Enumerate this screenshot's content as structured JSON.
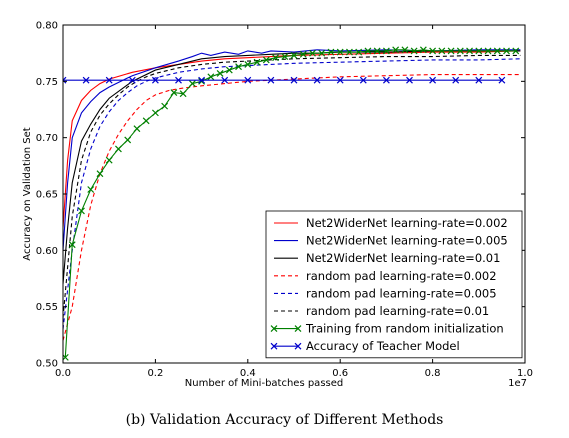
{
  "caption": "(b) Validation Accuracy of Different Methods",
  "chart_data": {
    "type": "line",
    "xlabel": "Number of Mini-batches passed",
    "ylabel": "Accuracy on Validation Set",
    "x_offset_label": "1e7",
    "xlim": [
      0.0,
      1.0
    ],
    "ylim": [
      0.5,
      0.8
    ],
    "x_ticks": [
      "0.0",
      "0.2",
      "0.4",
      "0.6",
      "0.8",
      "1.0"
    ],
    "y_ticks": [
      "0.50",
      "0.55",
      "0.60",
      "0.65",
      "0.70",
      "0.75",
      "0.80"
    ],
    "grid": false,
    "legend_position": "lower-right",
    "series": [
      {
        "name": "Net2WiderNet learning-rate=0.002",
        "color": "#ff0000",
        "style": "solid",
        "marker": "none",
        "x": [
          0.0,
          0.01,
          0.02,
          0.04,
          0.06,
          0.08,
          0.1,
          0.15,
          0.2,
          0.25,
          0.3,
          0.35,
          0.4,
          0.45,
          0.5,
          0.6,
          0.7,
          0.8,
          0.9,
          0.99
        ],
        "y": [
          0.62,
          0.68,
          0.715,
          0.733,
          0.742,
          0.748,
          0.752,
          0.758,
          0.762,
          0.765,
          0.768,
          0.77,
          0.771,
          0.772,
          0.773,
          0.774,
          0.775,
          0.776,
          0.776,
          0.777
        ]
      },
      {
        "name": "Net2WiderNet learning-rate=0.005",
        "color": "#0000cc",
        "style": "solid",
        "marker": "none",
        "x": [
          0.0,
          0.01,
          0.02,
          0.04,
          0.06,
          0.08,
          0.1,
          0.15,
          0.2,
          0.25,
          0.28,
          0.3,
          0.32,
          0.35,
          0.38,
          0.4,
          0.43,
          0.45,
          0.5,
          0.55,
          0.6,
          0.7,
          0.8,
          0.9,
          0.99
        ],
        "y": [
          0.6,
          0.66,
          0.7,
          0.722,
          0.732,
          0.74,
          0.745,
          0.755,
          0.762,
          0.768,
          0.772,
          0.775,
          0.773,
          0.776,
          0.774,
          0.777,
          0.775,
          0.777,
          0.776,
          0.778,
          0.777,
          0.778,
          0.777,
          0.778,
          0.778
        ]
      },
      {
        "name": "Net2WiderNet learning-rate=0.01",
        "color": "#000000",
        "style": "solid",
        "marker": "none",
        "x": [
          0.0,
          0.01,
          0.02,
          0.04,
          0.06,
          0.08,
          0.1,
          0.15,
          0.2,
          0.25,
          0.3,
          0.35,
          0.4,
          0.45,
          0.5,
          0.55,
          0.6,
          0.7,
          0.8,
          0.9,
          0.99
        ],
        "y": [
          0.57,
          0.62,
          0.66,
          0.697,
          0.712,
          0.725,
          0.735,
          0.75,
          0.76,
          0.765,
          0.77,
          0.772,
          0.773,
          0.774,
          0.775,
          0.775,
          0.776,
          0.776,
          0.777,
          0.777,
          0.777
        ]
      },
      {
        "name": "random pad learning-rate=0.002",
        "color": "#ff0000",
        "style": "dashed",
        "marker": "none",
        "x": [
          0.0,
          0.02,
          0.04,
          0.06,
          0.08,
          0.1,
          0.12,
          0.14,
          0.16,
          0.18,
          0.2,
          0.23,
          0.26,
          0.3,
          0.35,
          0.4,
          0.5,
          0.6,
          0.7,
          0.8,
          0.9,
          0.99
        ],
        "y": [
          0.52,
          0.55,
          0.6,
          0.64,
          0.668,
          0.688,
          0.703,
          0.715,
          0.725,
          0.733,
          0.738,
          0.742,
          0.744,
          0.746,
          0.748,
          0.75,
          0.752,
          0.754,
          0.755,
          0.756,
          0.756,
          0.756
        ]
      },
      {
        "name": "random pad learning-rate=0.005",
        "color": "#0000cc",
        "style": "dashed",
        "marker": "none",
        "x": [
          0.0,
          0.02,
          0.04,
          0.06,
          0.08,
          0.1,
          0.12,
          0.14,
          0.16,
          0.18,
          0.2,
          0.25,
          0.3,
          0.35,
          0.4,
          0.5,
          0.6,
          0.7,
          0.8,
          0.9,
          0.99
        ],
        "y": [
          0.53,
          0.6,
          0.66,
          0.69,
          0.71,
          0.723,
          0.733,
          0.74,
          0.746,
          0.75,
          0.753,
          0.758,
          0.761,
          0.763,
          0.764,
          0.766,
          0.767,
          0.768,
          0.769,
          0.769,
          0.77
        ]
      },
      {
        "name": "random pad learning-rate=0.01",
        "color": "#000000",
        "style": "dashed",
        "marker": "none",
        "x": [
          0.0,
          0.02,
          0.04,
          0.06,
          0.08,
          0.1,
          0.12,
          0.14,
          0.16,
          0.18,
          0.2,
          0.25,
          0.3,
          0.35,
          0.4,
          0.5,
          0.6,
          0.7,
          0.8,
          0.9,
          0.99
        ],
        "y": [
          0.54,
          0.63,
          0.68,
          0.705,
          0.72,
          0.73,
          0.738,
          0.745,
          0.75,
          0.754,
          0.757,
          0.762,
          0.765,
          0.767,
          0.768,
          0.77,
          0.771,
          0.772,
          0.772,
          0.773,
          0.773
        ]
      },
      {
        "name": "Training from random initialization",
        "color": "#008000",
        "style": "solid",
        "marker": "x",
        "x": [
          0.005,
          0.02,
          0.04,
          0.06,
          0.08,
          0.1,
          0.12,
          0.14,
          0.16,
          0.18,
          0.2,
          0.22,
          0.24,
          0.26,
          0.28,
          0.3,
          0.32,
          0.34,
          0.36,
          0.38,
          0.4,
          0.42,
          0.44,
          0.46,
          0.48,
          0.5,
          0.52,
          0.54,
          0.56,
          0.58,
          0.6,
          0.62,
          0.64,
          0.66,
          0.68,
          0.7,
          0.72,
          0.74,
          0.76,
          0.78,
          0.8,
          0.82,
          0.84,
          0.86,
          0.88,
          0.9,
          0.92,
          0.94,
          0.96,
          0.98
        ],
        "y": [
          0.505,
          0.605,
          0.635,
          0.654,
          0.668,
          0.68,
          0.69,
          0.698,
          0.708,
          0.715,
          0.722,
          0.728,
          0.74,
          0.739,
          0.748,
          0.75,
          0.754,
          0.757,
          0.76,
          0.763,
          0.765,
          0.767,
          0.769,
          0.771,
          0.772,
          0.773,
          0.774,
          0.775,
          0.775,
          0.776,
          0.776,
          0.776,
          0.776,
          0.777,
          0.777,
          0.777,
          0.778,
          0.778,
          0.777,
          0.778,
          0.777,
          0.777,
          0.777,
          0.777,
          0.777,
          0.777,
          0.777,
          0.777,
          0.777,
          0.777
        ]
      },
      {
        "name": "Accuracy of Teacher Model",
        "color": "#0000cc",
        "style": "solid",
        "marker": "x",
        "x": [
          0.0,
          0.05,
          0.1,
          0.15,
          0.2,
          0.25,
          0.3,
          0.35,
          0.4,
          0.45,
          0.5,
          0.55,
          0.6,
          0.65,
          0.7,
          0.75,
          0.8,
          0.85,
          0.9,
          0.95
        ],
        "y": [
          0.751,
          0.751,
          0.751,
          0.751,
          0.751,
          0.751,
          0.751,
          0.751,
          0.751,
          0.751,
          0.751,
          0.751,
          0.751,
          0.751,
          0.751,
          0.751,
          0.751,
          0.751,
          0.751,
          0.751
        ]
      }
    ]
  }
}
